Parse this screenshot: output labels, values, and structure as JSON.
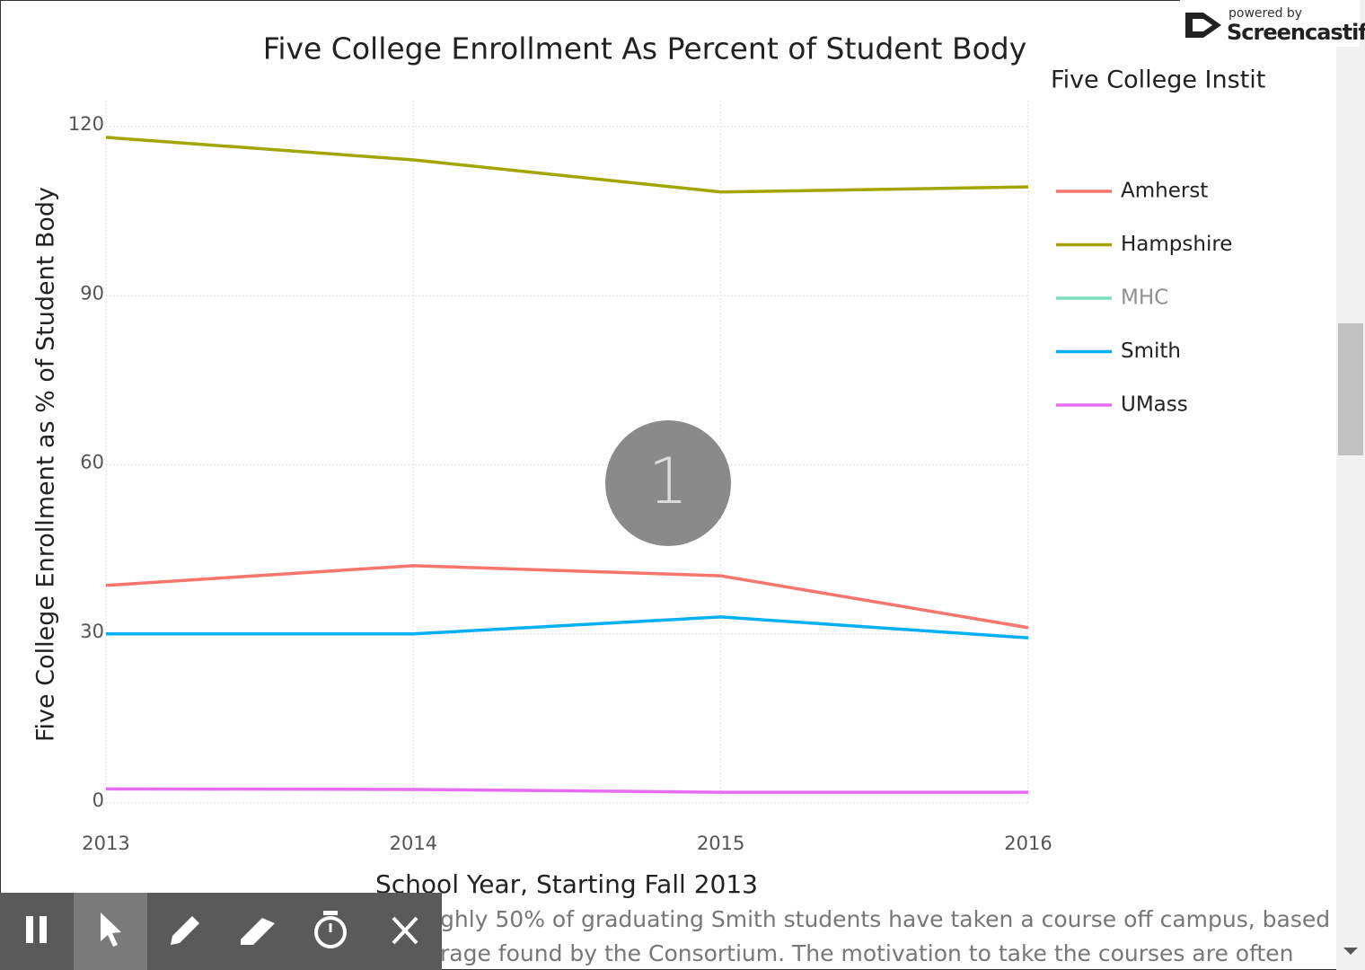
{
  "chart_data": {
    "type": "line",
    "title": "Five College Enrollment As Percent of Student Body",
    "x_label": "School Year, Starting Fall 2013",
    "y_label": "Five College Enrollment as % of Student Body",
    "legend_title": "Five College Instit",
    "x": [
      2013,
      2014,
      2015,
      2016
    ],
    "xlim": [
      2013,
      2016
    ],
    "xticks": [
      2013,
      2014,
      2015,
      2016
    ],
    "ylim": [
      0,
      120
    ],
    "yticks": [
      0,
      30,
      60,
      90,
      120
    ],
    "grid": true,
    "legend": "right",
    "series": [
      {
        "name": "Amherst",
        "color": "#f8766d",
        "values": [
          38.6,
          42.1,
          40.3,
          31.1
        ]
      },
      {
        "name": "Hampshire",
        "color": "#a3a500",
        "values": [
          118.1,
          114.1,
          108.4,
          109.3
        ]
      },
      {
        "name": "MHC",
        "color": "#00bf7d",
        "visible": false,
        "values": [
          null,
          null,
          null,
          null
        ]
      },
      {
        "name": "Smith",
        "color": "#00b0f6",
        "values": [
          30.0,
          30.0,
          33.0,
          29.3
        ]
      },
      {
        "name": "UMass",
        "color": "#e76bf3",
        "values": [
          2.5,
          2.4,
          1.9,
          1.9
        ]
      }
    ]
  },
  "overlay": {
    "click_counter": "1",
    "branding": {
      "line1": "powered by",
      "line2": "Screencastify"
    }
  },
  "paragraph": {
    "lines": [
      "ghly 50% of graduating Smith students have taken a course off campus, based",
      "rage found by the Consortium. The motivation to take the courses are often"
    ]
  }
}
